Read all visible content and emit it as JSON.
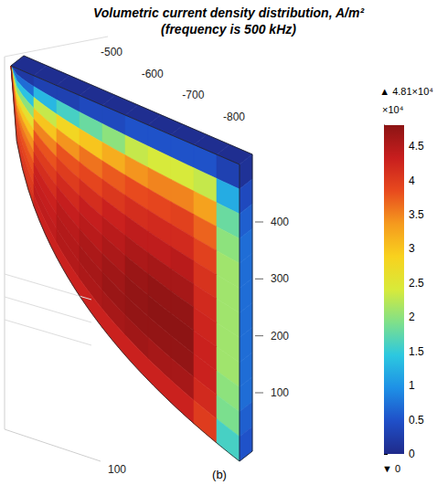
{
  "chart_data": {
    "type": "heatmap",
    "title": "Volumetric current density distribution, A/m²",
    "subtitle": "(frequency is 500 kHz)",
    "caption": "(b)",
    "axes": [
      {
        "ticks": [
          -500,
          -600,
          -700,
          -800
        ]
      },
      {
        "ticks": [
          400,
          300,
          200,
          100
        ]
      },
      {
        "ticks": [
          100
        ]
      }
    ],
    "front_face": [
      [
        0.2,
        0.3,
        0.3,
        0.4,
        0.4,
        0.5,
        0.5,
        0.5,
        0.5,
        0.3
      ],
      [
        0.7,
        1.3,
        1.6,
        1.8,
        2.0,
        2.3,
        2.4,
        2.4,
        2.3,
        1.2
      ],
      [
        1.4,
        2.3,
        2.8,
        3.0,
        3.2,
        3.4,
        3.5,
        3.5,
        3.3,
        1.8
      ],
      [
        2.0,
        3.0,
        3.4,
        3.6,
        3.75,
        3.85,
        3.9,
        3.95,
        3.7,
        2.0
      ],
      [
        2.6,
        3.5,
        3.8,
        3.9,
        4.05,
        4.15,
        4.2,
        4.2,
        3.95,
        2.1
      ],
      [
        3.0,
        3.8,
        4.0,
        4.15,
        4.3,
        4.4,
        4.4,
        4.45,
        4.1,
        2.1
      ],
      [
        3.4,
        4.0,
        4.2,
        4.35,
        4.45,
        4.55,
        4.6,
        4.6,
        4.2,
        2.1
      ],
      [
        3.6,
        4.15,
        4.35,
        4.45,
        4.55,
        4.7,
        4.75,
        4.75,
        4.25,
        2.1
      ],
      [
        3.8,
        4.3,
        4.45,
        4.55,
        4.65,
        4.75,
        4.8,
        4.8,
        4.3,
        2.1
      ],
      [
        3.9,
        4.35,
        4.5,
        4.6,
        4.7,
        4.75,
        4.75,
        4.75,
        4.3,
        2.0
      ],
      [
        4.0,
        4.4,
        4.5,
        4.55,
        4.6,
        4.65,
        4.6,
        4.6,
        4.2,
        1.9
      ],
      [
        4.1,
        4.3,
        4.3,
        4.3,
        4.3,
        4.3,
        4.3,
        4.3,
        4.0,
        1.6
      ]
    ],
    "top_face": [
      0.05,
      0.05,
      0.05,
      0.05,
      0.05,
      0.05,
      0.05,
      0.05,
      0.05,
      0.05
    ],
    "side_face": [
      0.1,
      0.4,
      0.6,
      0.7,
      0.7,
      0.7,
      0.7,
      0.7,
      0.7,
      0.7,
      0.6,
      0.5
    ],
    "colorbar": {
      "range": [
        0,
        4.81
      ],
      "ticks": [
        0,
        0.5,
        1,
        1.5,
        2,
        2.5,
        3,
        3.5,
        4,
        4.5
      ],
      "unit_label": "×10⁴",
      "max_label": "▲ 4.81×10⁴",
      "min_label": "▼ 0"
    }
  }
}
